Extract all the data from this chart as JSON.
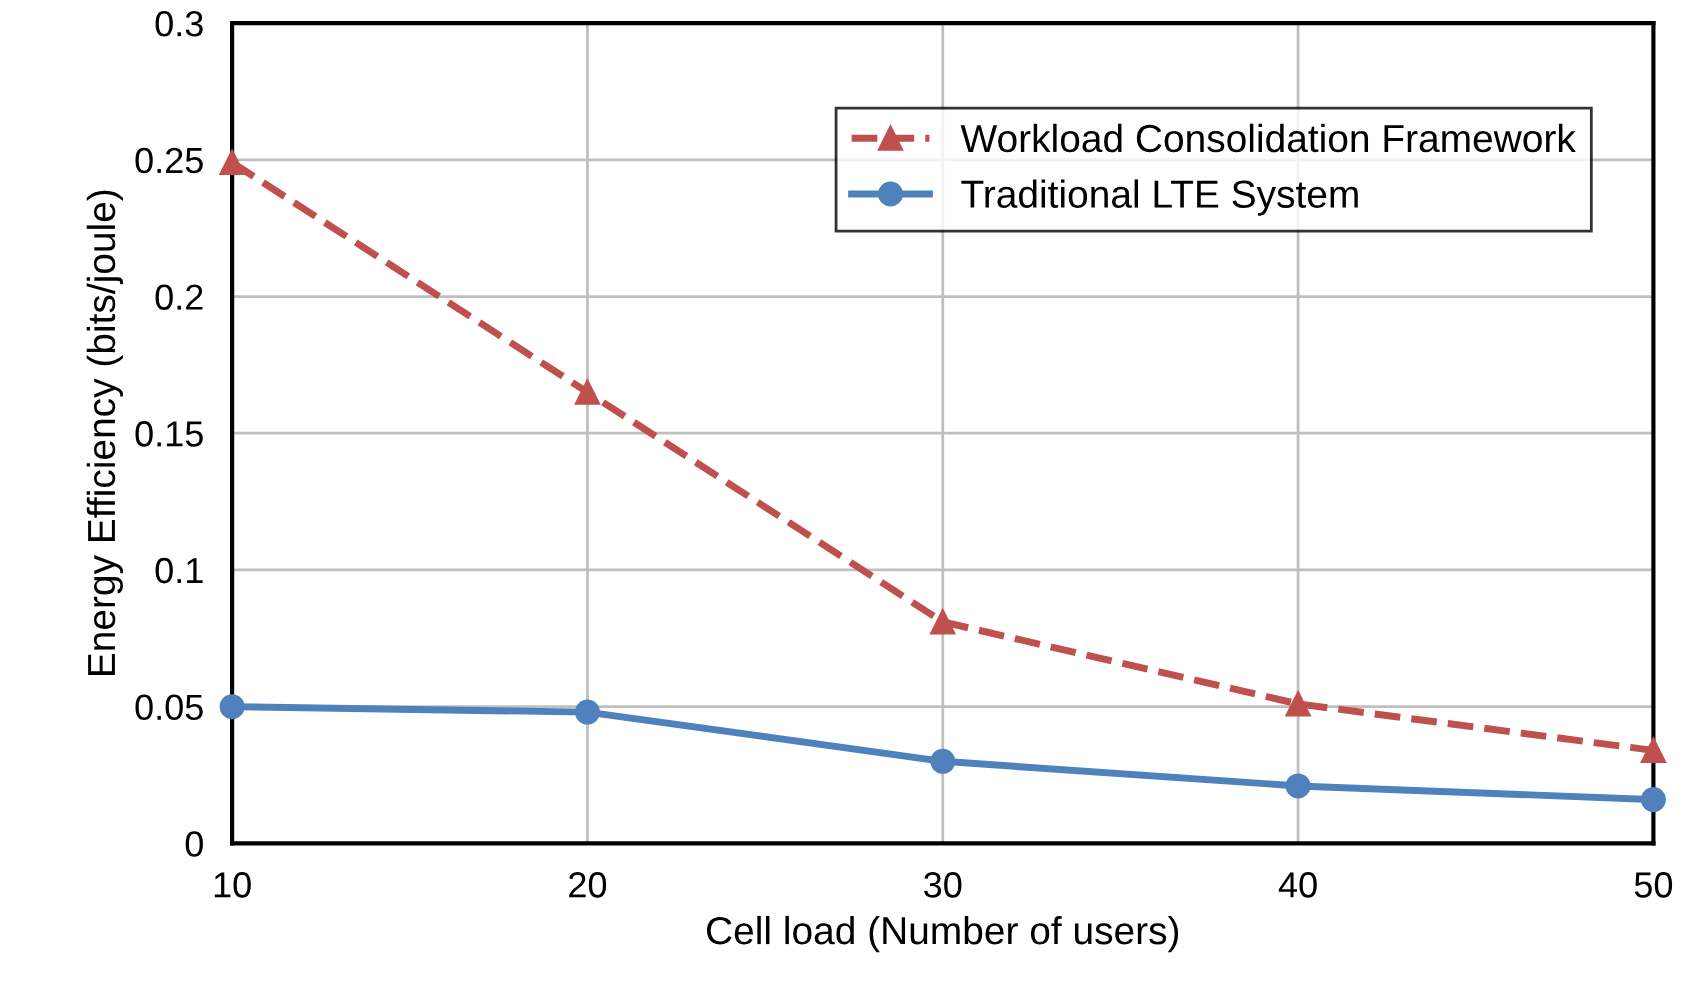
{
  "chart_data": {
    "type": "line",
    "xlabel": "Cell load (Number of users)",
    "ylabel": "Energy Efficiency (bits/joule)",
    "x": [
      10,
      20,
      30,
      40,
      50
    ],
    "series": [
      {
        "name": "Workload Consolidation Framework",
        "color": "#c0504d",
        "values": [
          0.249,
          0.165,
          0.081,
          0.051,
          0.034
        ],
        "marker": "triangle",
        "line_style": "dashed"
      },
      {
        "name": "Traditional LTE System",
        "color": "#4f81bd",
        "values": [
          0.05,
          0.048,
          0.03,
          0.021,
          0.016
        ],
        "marker": "circle",
        "line_style": "solid"
      }
    ],
    "xlim": [
      10,
      50
    ],
    "xticks": [
      10,
      20,
      30,
      40,
      50
    ],
    "ylim": [
      0,
      0.3
    ],
    "yticks": [
      0,
      0.05,
      0.1,
      0.15,
      0.2,
      0.25,
      0.3
    ],
    "grid": true,
    "legend": "top right"
  }
}
